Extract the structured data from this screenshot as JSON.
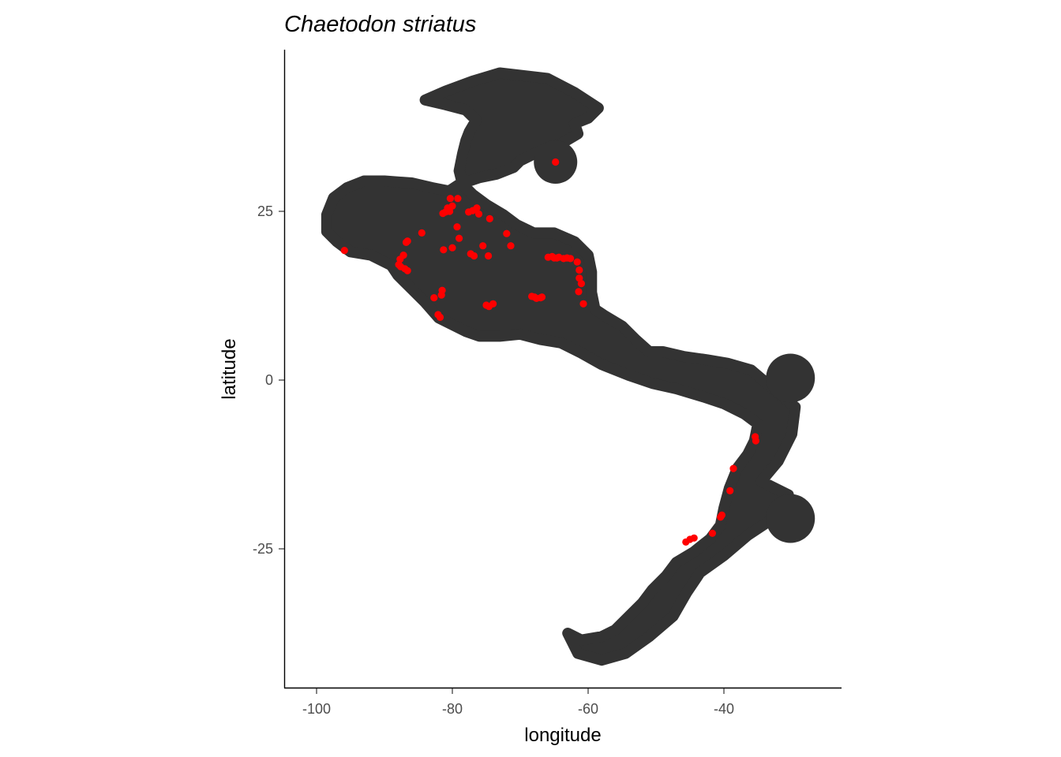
{
  "title": "Chaetodon striatus",
  "colors": {
    "range": "#333333",
    "points": "#ff0000",
    "axis": "#000000",
    "tick_text": "#4d4d4d"
  },
  "chart_data": {
    "type": "scatter",
    "title": "Chaetodon striatus",
    "xlabel": "longitude",
    "ylabel": "latitude",
    "xlim": [
      -105,
      -21
    ],
    "ylim": [
      -46,
      49
    ],
    "x_ticks": [
      {
        "value": -100,
        "label": "-100"
      },
      {
        "value": -80,
        "label": "-80"
      },
      {
        "value": -60,
        "label": "-60"
      },
      {
        "value": -40,
        "label": "-40"
      }
    ],
    "y_ticks": [
      {
        "value": -25,
        "label": "-25"
      },
      {
        "value": 0,
        "label": "0"
      },
      {
        "value": 25,
        "label": "25"
      }
    ],
    "grid": false,
    "legend": "none",
    "range_regions": [
      {
        "name": "main",
        "polygon": [
          [
            -84,
            41.5
          ],
          [
            -81,
            42.8
          ],
          [
            -77,
            44.3
          ],
          [
            -73,
            45.5
          ],
          [
            -66,
            44.7
          ],
          [
            -62,
            42.6
          ],
          [
            -58.5,
            40.3
          ],
          [
            -60,
            38.8
          ],
          [
            -62,
            38
          ],
          [
            -61.5,
            36.5
          ],
          [
            -64,
            35
          ],
          [
            -67,
            34
          ],
          [
            -70,
            32.5
          ],
          [
            -71,
            31.5
          ],
          [
            -73.5,
            30.5
          ],
          [
            -76,
            30
          ],
          [
            -79,
            29
          ],
          [
            -80.5,
            28
          ],
          [
            -83,
            28.5
          ],
          [
            -86,
            29.2
          ],
          [
            -90,
            29.5
          ],
          [
            -93,
            29.5
          ],
          [
            -95.5,
            28.5
          ],
          [
            -97.5,
            27
          ],
          [
            -98.5,
            24.5
          ],
          [
            -98.5,
            22
          ],
          [
            -97,
            20.5
          ],
          [
            -95,
            19
          ],
          [
            -92,
            18.5
          ],
          [
            -89,
            17
          ],
          [
            -88,
            15.5
          ],
          [
            -86,
            13.5
          ],
          [
            -84,
            11.5
          ],
          [
            -82,
            9.2
          ],
          [
            -78,
            7.2
          ],
          [
            -76,
            6.5
          ],
          [
            -73,
            6.5
          ],
          [
            -70,
            6.8
          ],
          [
            -67,
            6
          ],
          [
            -64,
            5.5
          ],
          [
            -61,
            4
          ],
          [
            -58,
            2.3
          ],
          [
            -54,
            0.7
          ],
          [
            -50.5,
            -0.5
          ],
          [
            -47,
            -1.3
          ],
          [
            -43,
            -2.5
          ],
          [
            -40,
            -3.5
          ],
          [
            -37,
            -5
          ],
          [
            -35,
            -6.5
          ],
          [
            -35.5,
            -9
          ],
          [
            -36.5,
            -11
          ],
          [
            -38,
            -13
          ],
          [
            -39.2,
            -16
          ],
          [
            -40,
            -19
          ],
          [
            -40.5,
            -21.5
          ],
          [
            -42,
            -23.5
          ],
          [
            -44.5,
            -25.5
          ],
          [
            -47,
            -27
          ],
          [
            -48.5,
            -29
          ],
          [
            -50.5,
            -31
          ],
          [
            -52,
            -33
          ],
          [
            -54,
            -35
          ],
          [
            -56,
            -37
          ],
          [
            -58,
            -38
          ],
          [
            -61,
            -38.5
          ],
          [
            -63,
            -37.5
          ],
          [
            -61.5,
            -40.5
          ],
          [
            -58,
            -41.5
          ],
          [
            -54.5,
            -40.5
          ],
          [
            -51,
            -38
          ],
          [
            -47.5,
            -35
          ],
          [
            -45.5,
            -31.5
          ],
          [
            -43.5,
            -28.5
          ],
          [
            -40,
            -26
          ],
          [
            -36.5,
            -23
          ],
          [
            -33.5,
            -21
          ],
          [
            -30,
            -20
          ],
          [
            -30.5,
            -17
          ],
          [
            -34.5,
            -15
          ],
          [
            -32,
            -12
          ],
          [
            -30,
            -8
          ],
          [
            -29.5,
            -4
          ],
          [
            -32.5,
            -1.5
          ],
          [
            -36,
            1.5
          ],
          [
            -39.5,
            2.5
          ],
          [
            -42.5,
            3
          ],
          [
            -46,
            3.5
          ],
          [
            -49,
            4.2
          ],
          [
            -51,
            4.2
          ],
          [
            -53,
            6
          ],
          [
            -55,
            8
          ],
          [
            -57.5,
            9.5
          ],
          [
            -59,
            10.5
          ],
          [
            -59.5,
            13
          ],
          [
            -59.5,
            16
          ],
          [
            -60,
            18.5
          ],
          [
            -62,
            20.5
          ],
          [
            -65,
            21.8
          ],
          [
            -68,
            21.8
          ],
          [
            -70.5,
            23
          ],
          [
            -72.5,
            24.5
          ],
          [
            -75,
            26
          ],
          [
            -77,
            27.5
          ],
          [
            -78.5,
            29
          ],
          [
            -79,
            31
          ],
          [
            -78.5,
            33.5
          ],
          [
            -78,
            35.5
          ],
          [
            -77.5,
            36.8
          ],
          [
            -76.5,
            38.5
          ],
          [
            -78,
            40
          ],
          [
            -81,
            40.8
          ]
        ]
      },
      {
        "name": "bermuda",
        "circle": [
          -64.8,
          32.3,
          3.2
        ]
      },
      {
        "name": "east-0",
        "circle": [
          -30.2,
          0.3,
          3.6
        ]
      },
      {
        "name": "east-20",
        "circle": [
          -30.2,
          -20.5,
          3.6
        ]
      }
    ],
    "series": [
      {
        "x": [
          -95.9,
          -87.9,
          -87.7,
          -87.2,
          -87.6,
          -87.0,
          -86.6,
          -86.8,
          -86.6,
          -84.5,
          -81.4,
          -81.0,
          -80.7,
          -80.4,
          -80.3,
          -80.0,
          -79.2,
          -79.3,
          -79.0,
          -80.0,
          -81.3,
          -77.6,
          -77.0,
          -76.4,
          -76.1,
          -74.5,
          -75.5,
          -77.3,
          -76.8,
          -74.7,
          -72.0,
          -71.4,
          -74.0,
          -75.0,
          -74.6,
          -82.7,
          -81.6,
          -81.5,
          -82.1,
          -81.8,
          -68.3,
          -67.9,
          -67.6,
          -67.0,
          -66.8,
          -65.9,
          -65.3,
          -65.0,
          -64.6,
          -64.3,
          -63.6,
          -63.1,
          -62.6,
          -61.6,
          -61.3,
          -61.3,
          -61.0,
          -61.4,
          -60.7,
          -64.8,
          -35.4,
          -35.3,
          -38.6,
          -39.1,
          -40.3,
          -40.5,
          -41.7,
          -44.4,
          -45.0,
          -45.6
        ],
        "y": [
          19.2,
          17.1,
          17.9,
          18.5,
          16.8,
          16.5,
          16.2,
          20.4,
          20.6,
          21.8,
          24.7,
          24.9,
          25.5,
          25.0,
          26.9,
          25.8,
          26.9,
          22.7,
          21.0,
          19.6,
          19.3,
          24.9,
          25.1,
          25.5,
          24.6,
          23.9,
          19.9,
          18.7,
          18.4,
          18.4,
          21.7,
          19.9,
          11.3,
          11.1,
          10.9,
          12.2,
          12.6,
          13.3,
          9.7,
          9.3,
          12.4,
          12.3,
          12.1,
          12.2,
          12.3,
          18.2,
          18.3,
          18.1,
          18.1,
          18.2,
          18.0,
          18.1,
          18.0,
          17.5,
          16.3,
          15.1,
          14.3,
          13.1,
          11.3,
          32.3,
          -8.4,
          -9.0,
          -13.1,
          -16.4,
          -20.0,
          -20.3,
          -22.7,
          -23.4,
          -23.6,
          -24.0
        ]
      }
    ]
  }
}
